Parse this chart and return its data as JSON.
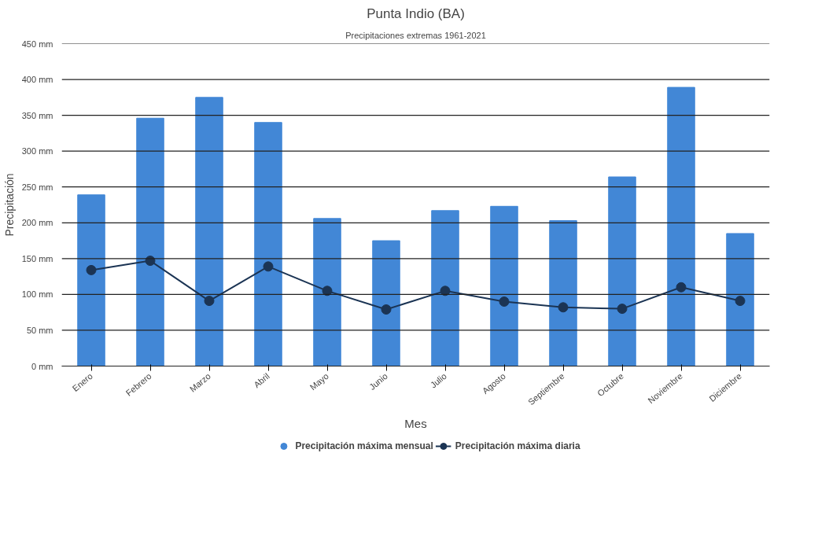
{
  "chart_data": {
    "type": "bar",
    "title": "Punta Indio (BA)",
    "subtitle": "Precipitaciones extremas 1961-2021",
    "xlabel": "Mes",
    "ylabel": "Precipitación",
    "categories": [
      "Enero",
      "Febrero",
      "Marzo",
      "Abril",
      "Mayo",
      "Junio",
      "Julio",
      "Agosto",
      "Septiembre",
      "Octubre",
      "Noviembre",
      "Diciembre"
    ],
    "series": [
      {
        "name": "Precipitación máxima mensual",
        "color": "#4287d6",
        "values": [
          239,
          346,
          375,
          340,
          206,
          175,
          217,
          223,
          203,
          264,
          389,
          185
        ]
      },
      {
        "name": "Precipitación máxima diaria",
        "type": "line",
        "color": "#1b3454",
        "values": [
          134,
          147,
          91,
          139,
          105,
          79,
          105,
          90,
          82,
          80,
          110,
          91
        ]
      }
    ],
    "ylim": [
      0,
      450
    ],
    "yticks": [
      {
        "value": 0,
        "label": "0 mm"
      },
      {
        "value": 50,
        "label": "50 mm"
      },
      {
        "value": 100,
        "label": "100 mm"
      },
      {
        "value": 150,
        "label": "150 mm"
      },
      {
        "value": 200,
        "label": "200 mm"
      },
      {
        "value": 250,
        "label": "250 mm"
      },
      {
        "value": 300,
        "label": "300 mm"
      },
      {
        "value": 350,
        "label": "350 mm"
      },
      {
        "value": 400,
        "label": "400 mm"
      },
      {
        "value": 450,
        "label": "450 mm"
      }
    ],
    "grid": "y",
    "legend": "bottom",
    "marker": "circle"
  }
}
